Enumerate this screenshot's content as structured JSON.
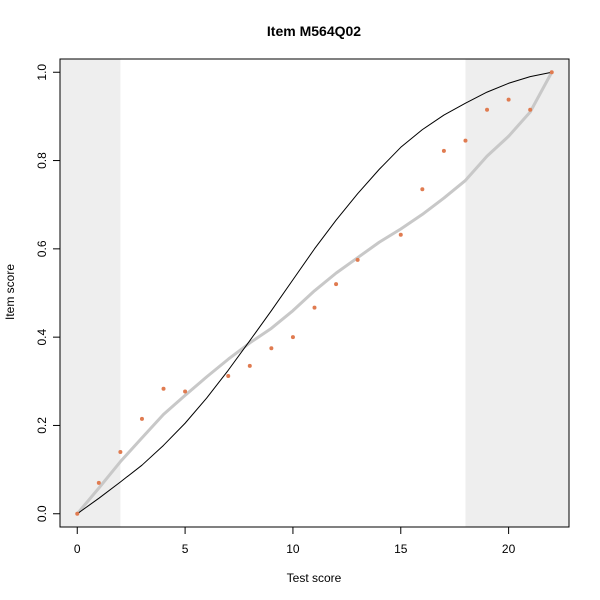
{
  "chart_data": {
    "type": "scatter",
    "title": "Item M564Q02",
    "xlabel": "Test score",
    "ylabel": "Item score",
    "xlim": [
      -0.8,
      22.8
    ],
    "ylim": [
      -0.03,
      1.03
    ],
    "xticks": [
      0,
      5,
      10,
      15,
      20
    ],
    "xtick_labels": [
      "0",
      "5",
      "10",
      "15",
      "20"
    ],
    "yticks": [
      0.0,
      0.2,
      0.4,
      0.6,
      0.8,
      1.0
    ],
    "ytick_labels": [
      "0.0",
      "0.2",
      "0.4",
      "0.6",
      "0.8",
      "1.0"
    ],
    "grid": false,
    "shaded_regions": [
      {
        "from": -0.8,
        "to": 2
      },
      {
        "from": 18,
        "to": 22.8
      }
    ],
    "series": [
      {
        "kind": "points",
        "color": "#E07B50",
        "x": [
          0,
          1,
          2,
          3,
          4,
          5,
          7,
          8,
          9,
          10,
          11,
          12,
          13,
          15,
          16,
          17,
          18,
          19,
          20,
          21,
          22
        ],
        "y": [
          0.0,
          0.07,
          0.14,
          0.215,
          0.283,
          0.277,
          0.312,
          0.335,
          0.375,
          0.4,
          0.467,
          0.52,
          0.575,
          0.632,
          0.735,
          0.822,
          0.845,
          0.915,
          0.938,
          0.915,
          1.0
        ]
      },
      {
        "kind": "line",
        "color": "#C8C8C8",
        "x": [
          0,
          1,
          2,
          3,
          4,
          5,
          6,
          7,
          8,
          9,
          10,
          11,
          12,
          13,
          14,
          15,
          16,
          17,
          18,
          19,
          20,
          21,
          22
        ],
        "y": [
          0.0,
          0.058,
          0.118,
          0.172,
          0.225,
          0.268,
          0.31,
          0.35,
          0.387,
          0.42,
          0.46,
          0.505,
          0.545,
          0.58,
          0.615,
          0.645,
          0.678,
          0.715,
          0.755,
          0.81,
          0.855,
          0.91,
          1.0
        ]
      },
      {
        "kind": "line",
        "color": "#000000",
        "x": [
          0,
          1,
          2,
          3,
          4,
          5,
          6,
          7,
          8,
          9,
          10,
          11,
          12,
          13,
          14,
          15,
          16,
          17,
          18,
          19,
          20,
          21,
          22
        ],
        "y": [
          0.0,
          0.035,
          0.072,
          0.11,
          0.155,
          0.205,
          0.262,
          0.325,
          0.392,
          0.46,
          0.53,
          0.6,
          0.665,
          0.725,
          0.78,
          0.83,
          0.87,
          0.903,
          0.93,
          0.955,
          0.975,
          0.99,
          1.0
        ]
      }
    ]
  }
}
